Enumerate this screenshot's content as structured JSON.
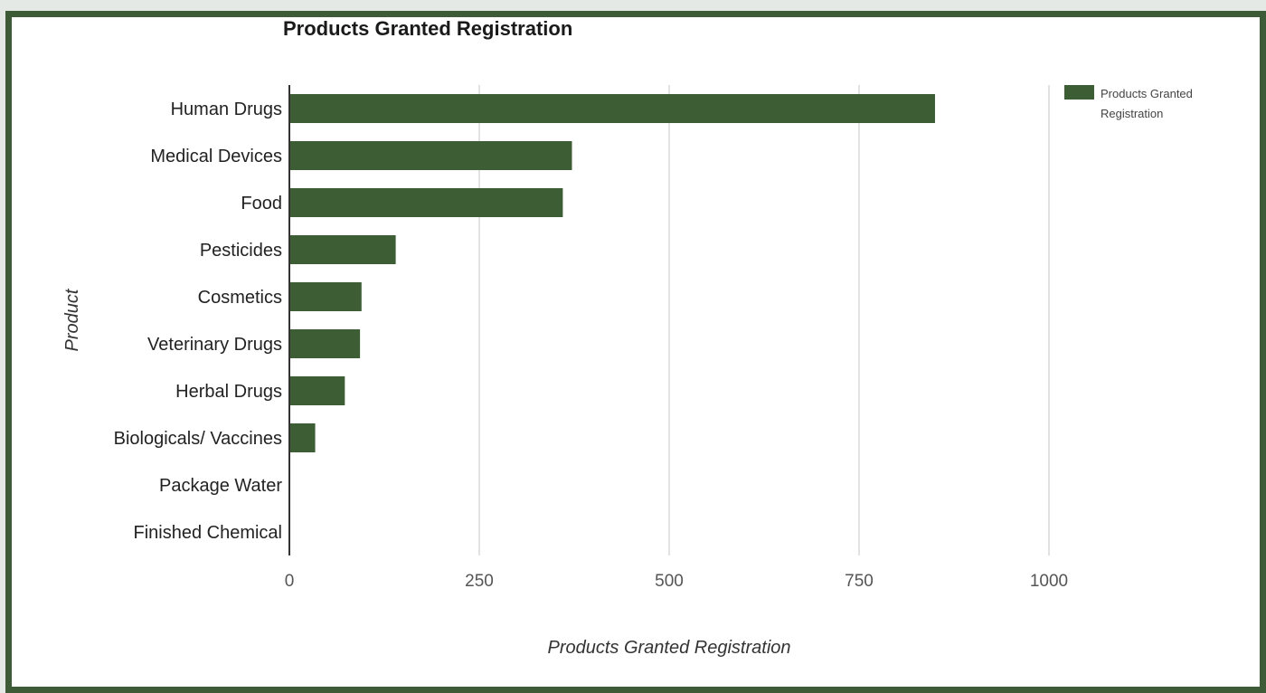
{
  "chart_data": {
    "type": "bar",
    "orientation": "horizontal",
    "title": "Products Granted Registration",
    "xlabel": "Products Granted Registration",
    "ylabel": "Product",
    "categories": [
      "Human Drugs",
      "Medical Devices",
      "Food",
      "Pesticides",
      "Cosmetics",
      "Veterinary Drugs",
      "Herbal Drugs",
      "Biologicals/ Vaccines",
      "Package Water",
      "Finished Chemical"
    ],
    "series": [
      {
        "name": "Products Granted Registration",
        "values": [
          850,
          372,
          360,
          140,
          95,
          93,
          73,
          34,
          0,
          0
        ]
      }
    ],
    "xlim": [
      0,
      1000
    ],
    "xticks": [
      "0",
      "250",
      "500",
      "750",
      "1000"
    ],
    "grid": true,
    "legend": "top-right",
    "legend_lines": [
      "Products Granted",
      "Registration"
    ],
    "bar_color": "#3d5e35"
  }
}
